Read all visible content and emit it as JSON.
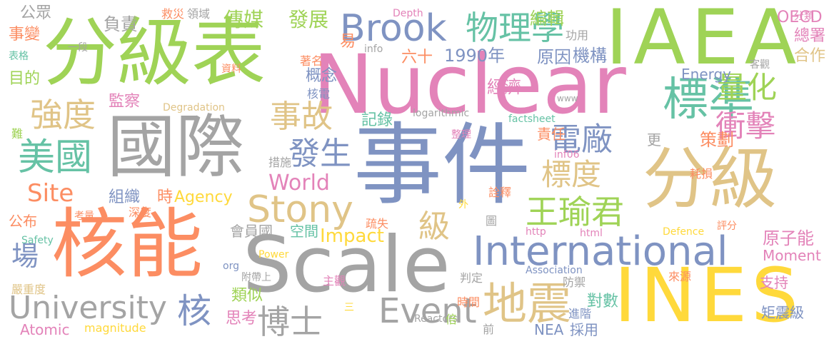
{
  "cloud": {
    "words": [
      {
        "text": "Nuclear",
        "color": "#e383b9"
      },
      {
        "text": "事件",
        "color": "#7f93c2"
      },
      {
        "text": "分級表",
        "color": "#9fd356"
      },
      {
        "text": "國際",
        "color": "#a4a4a4"
      },
      {
        "text": "IAEA",
        "color": "#9fd356"
      },
      {
        "text": "INES",
        "color": "#ffd93b"
      },
      {
        "text": "分級",
        "color": "#e0c487"
      },
      {
        "text": "Scale",
        "color": "#a4a4a4"
      },
      {
        "text": "核能",
        "color": "#fc8d62"
      },
      {
        "text": "International",
        "color": "#7f93c2"
      },
      {
        "text": "Stony",
        "color": "#e0c487"
      },
      {
        "text": "Brook",
        "color": "#7f93c2"
      },
      {
        "text": "物理學",
        "color": "#66c2a5"
      },
      {
        "text": "標準",
        "color": "#66c2a5"
      },
      {
        "text": "地震",
        "color": "#e0c487"
      },
      {
        "text": "Event",
        "color": "#a4a4a4"
      },
      {
        "text": "University",
        "color": "#a4a4a4"
      },
      {
        "text": "美國",
        "color": "#66c2a5"
      },
      {
        "text": "強度",
        "color": "#e0c487"
      },
      {
        "text": "事故",
        "color": "#e0c487"
      },
      {
        "text": "發生",
        "color": "#7f93c2"
      },
      {
        "text": "電廠",
        "color": "#7f93c2"
      },
      {
        "text": "王瑜君",
        "color": "#9fd356"
      },
      {
        "text": "博士",
        "color": "#a4a4a4"
      },
      {
        "text": "量化",
        "color": "#9fd356"
      },
      {
        "text": "衝擊",
        "color": "#e383b9"
      },
      {
        "text": "標度",
        "color": "#e0c487"
      },
      {
        "text": "核",
        "color": "#7f93c2"
      },
      {
        "text": "Site",
        "color": "#fc8d62"
      },
      {
        "text": "World",
        "color": "#e383b9"
      },
      {
        "text": "Impact",
        "color": "#ffd93b"
      },
      {
        "text": "級",
        "color": "#e0c487"
      },
      {
        "text": "場",
        "color": "#7f93c2"
      },
      {
        "text": "傳媒",
        "color": "#9fd356"
      },
      {
        "text": "發展",
        "color": "#9fd356"
      },
      {
        "text": "編輯",
        "color": "#9fd356"
      },
      {
        "text": "1990年",
        "color": "#7f93c2"
      },
      {
        "text": "原因",
        "color": "#7f93c2"
      },
      {
        "text": "機構",
        "color": "#7f93c2"
      },
      {
        "text": "Energy",
        "color": "#7f93c2"
      },
      {
        "text": "OECD",
        "color": "#e383b9"
      },
      {
        "text": "總署",
        "color": "#e383b9"
      },
      {
        "text": "合作",
        "color": "#e0c487"
      },
      {
        "text": "分類",
        "color": "#e383b9"
      },
      {
        "text": "公眾",
        "color": "#a4a4a4"
      },
      {
        "text": "事變",
        "color": "#fc8d62"
      },
      {
        "text": "目的",
        "color": "#9fd356"
      },
      {
        "text": "負責",
        "color": "#a4a4a4"
      },
      {
        "text": "一段",
        "color": "#a4a4a4"
      },
      {
        "text": "表格",
        "color": "#66c2a5"
      },
      {
        "text": "救災",
        "color": "#fc8d62"
      },
      {
        "text": "領域",
        "color": "#a4a4a4"
      },
      {
        "text": "易",
        "color": "#fc8d62"
      },
      {
        "text": "六十",
        "color": "#fc8d62"
      },
      {
        "text": "著名",
        "color": "#fc8d62"
      },
      {
        "text": "資料",
        "color": "#fc8d62"
      },
      {
        "text": "概念",
        "color": "#7f93c2"
      },
      {
        "text": "核電",
        "color": "#7f93c2"
      },
      {
        "text": "Depth",
        "color": "#e383b9"
      },
      {
        "text": "info",
        "color": "#a4a4a4"
      },
      {
        "text": "功用",
        "color": "#a4a4a4"
      },
      {
        "text": "客觀",
        "color": "#a4a4a4"
      },
      {
        "text": "www",
        "color": "#a4a4a4"
      },
      {
        "text": "監察",
        "color": "#e383b9"
      },
      {
        "text": "Degradation",
        "color": "#e0c487"
      },
      {
        "text": "記錄",
        "color": "#66c2a5"
      },
      {
        "text": "logarithmic",
        "color": "#a4a4a4"
      },
      {
        "text": "factsheet",
        "color": "#66c2a5"
      },
      {
        "text": "經濟",
        "color": "#e383b9"
      },
      {
        "text": "整理",
        "color": "#e383b9"
      },
      {
        "text": "責任",
        "color": "#fc8d62"
      },
      {
        "text": "更",
        "color": "#a4a4a4"
      },
      {
        "text": "策劃",
        "color": "#fc8d62"
      },
      {
        "text": "inf06",
        "color": "#e383b9"
      },
      {
        "text": "難",
        "color": "#9fd356"
      },
      {
        "text": "組織",
        "color": "#7f93c2"
      },
      {
        "text": "時",
        "color": "#fc8d62"
      },
      {
        "text": "Agency",
        "color": "#ffd93b"
      },
      {
        "text": "措施",
        "color": "#a4a4a4"
      },
      {
        "text": "耗損",
        "color": "#fc8d62"
      },
      {
        "text": "詮釋",
        "color": "#fc8d62"
      },
      {
        "text": "公布",
        "color": "#fc8d62"
      },
      {
        "text": "考量",
        "color": "#fc8d62"
      },
      {
        "text": "深度",
        "color": "#fc8d62"
      },
      {
        "text": "外",
        "color": "#ffd93b"
      },
      {
        "text": "圖",
        "color": "#a4a4a4"
      },
      {
        "text": "疏失",
        "color": "#fc8d62"
      },
      {
        "text": "會員國",
        "color": "#a4a4a4"
      },
      {
        "text": "空間",
        "color": "#66c2a5"
      },
      {
        "text": "http",
        "color": "#e383b9"
      },
      {
        "text": "html",
        "color": "#e383b9"
      },
      {
        "text": "Defence",
        "color": "#ffd93b"
      },
      {
        "text": "評分",
        "color": "#fc8d62"
      },
      {
        "text": "原子能",
        "color": "#e383b9"
      },
      {
        "text": "Safety",
        "color": "#66c2a5"
      },
      {
        "text": "Power",
        "color": "#ffd93b"
      },
      {
        "text": "Moment",
        "color": "#e383b9"
      },
      {
        "text": "org",
        "color": "#7f93c2"
      },
      {
        "text": "附帶上",
        "color": "#a4a4a4"
      },
      {
        "text": "判定",
        "color": "#a4a4a4"
      },
      {
        "text": "Association",
        "color": "#7f93c2"
      },
      {
        "text": "防禦",
        "color": "#a4a4a4"
      },
      {
        "text": "來源",
        "color": "#fc8d62"
      },
      {
        "text": "嚴重度",
        "color": "#e0c487"
      },
      {
        "text": "主觀",
        "color": "#e383b9"
      },
      {
        "text": "支持",
        "color": "#e383b9"
      },
      {
        "text": "類似",
        "color": "#9fd356"
      },
      {
        "text": "對數",
        "color": "#66c2a5"
      },
      {
        "text": "思考",
        "color": "#e383b9"
      },
      {
        "text": "三",
        "color": "#ffd93b"
      },
      {
        "text": "Reactors",
        "color": "#a4a4a4"
      },
      {
        "text": "時間",
        "color": "#fc8d62"
      },
      {
        "text": "進階",
        "color": "#7f93c2"
      },
      {
        "text": "倍",
        "color": "#9fd356"
      },
      {
        "text": "矩震級",
        "color": "#7f93c2"
      },
      {
        "text": "Atomic",
        "color": "#e383b9"
      },
      {
        "text": "magnitude",
        "color": "#ffd93b"
      },
      {
        "text": "前",
        "color": "#a4a4a4"
      },
      {
        "text": "NEA",
        "color": "#7f93c2"
      },
      {
        "text": "採用",
        "color": "#7f93c2"
      }
    ]
  }
}
